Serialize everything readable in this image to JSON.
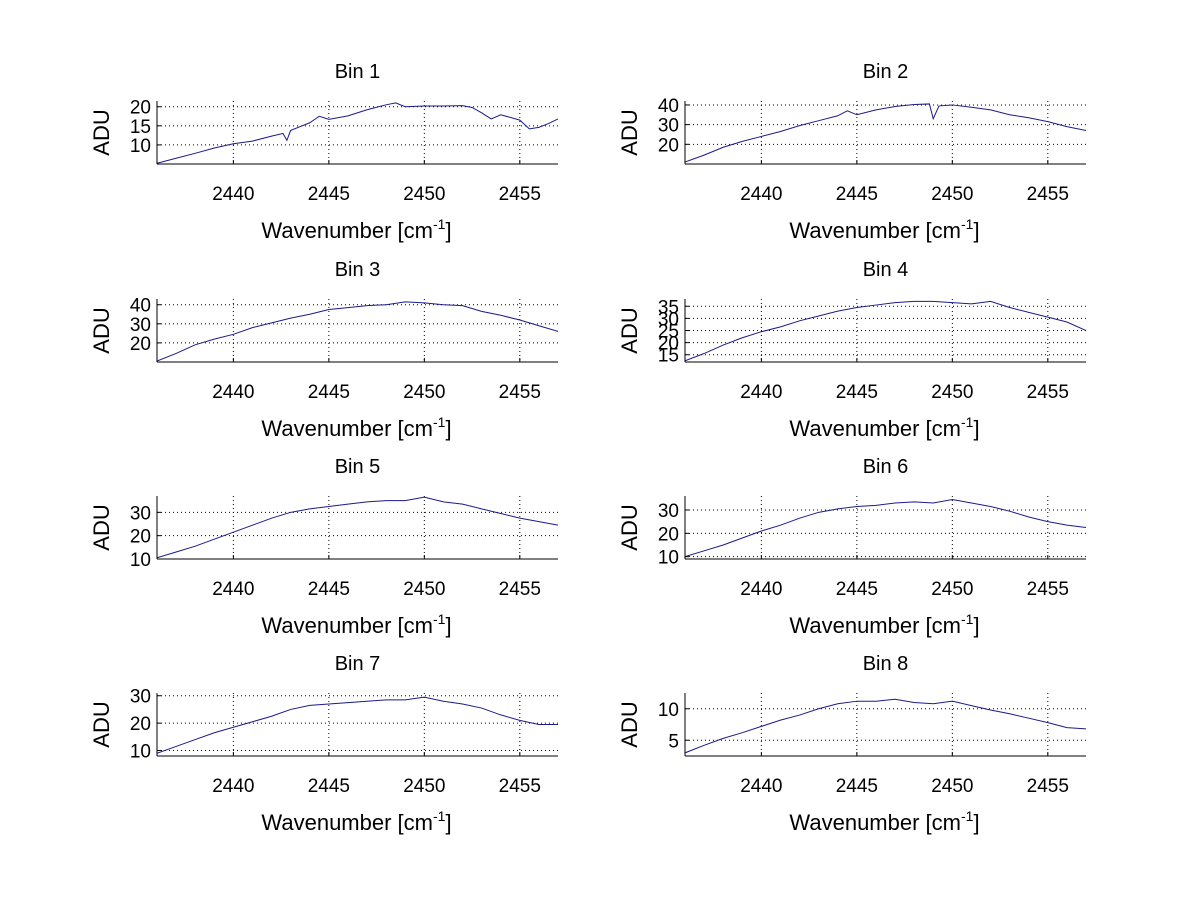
{
  "chart_data": [
    {
      "type": "line",
      "title": "Bin 1",
      "xlabel": "Wavenumber [cm",
      "xlabel_sup": "-1",
      "xlabel_tail": "]",
      "ylabel": "ADU",
      "xlim": [
        2436,
        2457
      ],
      "ylim": [
        5,
        21.5
      ],
      "xticks": [
        2440,
        2445,
        2450,
        2455
      ],
      "yticks": [
        10,
        15,
        20
      ],
      "line_color": "#1a1a8c",
      "grid": true,
      "x": [
        2436,
        2437,
        2438,
        2439,
        2440,
        2441,
        2442,
        2442.6,
        2442.8,
        2443,
        2444,
        2444.5,
        2445,
        2446,
        2447,
        2448,
        2448.5,
        2449,
        2450,
        2451,
        2452,
        2452.5,
        2453,
        2453.5,
        2454,
        2455,
        2455.5,
        2456,
        2456.5,
        2457
      ],
      "y": [
        5.2,
        6.5,
        7.8,
        9.2,
        10.3,
        11,
        12.3,
        13,
        11.2,
        13.8,
        15.8,
        17.5,
        16.7,
        17.6,
        19.2,
        20.5,
        21,
        20,
        20.2,
        20.2,
        20.3,
        19.8,
        18.4,
        16.8,
        17.9,
        16.5,
        14.2,
        14.6,
        15.6,
        16.8
      ]
    },
    {
      "type": "line",
      "title": "Bin 2",
      "xlabel": "Wavenumber [cm",
      "xlabel_sup": "-1",
      "xlabel_tail": "]",
      "ylabel": "ADU",
      "xlim": [
        2436,
        2457
      ],
      "ylim": [
        10,
        42
      ],
      "xticks": [
        2440,
        2445,
        2450,
        2455
      ],
      "yticks": [
        20,
        30,
        40
      ],
      "line_color": "#1a1a8c",
      "grid": true,
      "x": [
        2436,
        2437,
        2438,
        2439,
        2440,
        2441,
        2442,
        2443,
        2444,
        2444.5,
        2445,
        2446,
        2447,
        2448,
        2448.8,
        2449,
        2449.3,
        2450,
        2451,
        2452,
        2453,
        2454,
        2455,
        2456,
        2457
      ],
      "y": [
        11,
        14.5,
        18.5,
        21.5,
        24,
        26.5,
        29.5,
        32,
        34.5,
        37,
        35,
        37.5,
        39.2,
        40.2,
        40.5,
        33,
        39.5,
        40,
        38.8,
        37.5,
        35,
        33.5,
        31.5,
        29,
        27
      ]
    },
    {
      "type": "line",
      "title": "Bin 3",
      "xlabel": "Wavenumber [cm",
      "xlabel_sup": "-1",
      "xlabel_tail": "]",
      "ylabel": "ADU",
      "xlim": [
        2436,
        2457
      ],
      "ylim": [
        10,
        43
      ],
      "xticks": [
        2440,
        2445,
        2450,
        2455
      ],
      "yticks": [
        20,
        30,
        40
      ],
      "line_color": "#1a1a8c",
      "grid": true,
      "x": [
        2436,
        2437,
        2438,
        2439,
        2440,
        2441,
        2442,
        2443,
        2444,
        2445,
        2446,
        2447,
        2448,
        2449,
        2450,
        2451,
        2452,
        2453,
        2454,
        2455,
        2456,
        2457
      ],
      "y": [
        10.5,
        14.5,
        19,
        22,
        24.5,
        28,
        30.5,
        33,
        35,
        37.5,
        38.5,
        39.5,
        40,
        41.5,
        41,
        40,
        39.5,
        36.5,
        34.5,
        32,
        29,
        26
      ]
    },
    {
      "type": "line",
      "title": "Bin 4",
      "xlabel": "Wavenumber [cm",
      "xlabel_sup": "-1",
      "xlabel_tail": "]",
      "ylabel": "ADU",
      "xlim": [
        2436,
        2457
      ],
      "ylim": [
        12,
        38
      ],
      "xticks": [
        2440,
        2445,
        2450,
        2455
      ],
      "yticks": [
        15,
        20,
        25,
        30,
        35
      ],
      "line_color": "#1a1a8c",
      "grid": true,
      "x": [
        2436,
        2437,
        2438,
        2439,
        2440,
        2441,
        2442,
        2443,
        2444,
        2445,
        2446,
        2447,
        2448,
        2449,
        2450,
        2451,
        2452,
        2453,
        2454,
        2455,
        2456,
        2457
      ],
      "y": [
        12.5,
        15.5,
        19,
        22,
        24.5,
        26.5,
        29,
        31,
        33,
        34.5,
        35.5,
        36.5,
        37,
        37,
        36.5,
        36,
        37,
        34.5,
        32.5,
        30.5,
        28.5,
        25
      ]
    },
    {
      "type": "line",
      "title": "Bin 5",
      "xlabel": "Wavenumber [cm",
      "xlabel_sup": "-1",
      "xlabel_tail": "]",
      "ylabel": "ADU",
      "xlim": [
        2436,
        2457
      ],
      "ylim": [
        10,
        37
      ],
      "xticks": [
        2440,
        2445,
        2450,
        2455
      ],
      "yticks": [
        10,
        20,
        30
      ],
      "line_color": "#1a1a8c",
      "grid": true,
      "x": [
        2436,
        2437,
        2438,
        2439,
        2440,
        2441,
        2442,
        2443,
        2444,
        2445,
        2446,
        2447,
        2448,
        2449,
        2450,
        2451,
        2452,
        2453,
        2454,
        2455,
        2456,
        2457
      ],
      "y": [
        10.5,
        13,
        15.5,
        18.5,
        21.5,
        24.5,
        27.5,
        30,
        31.5,
        32.5,
        33.5,
        34.5,
        35,
        35,
        36.5,
        34.5,
        33.5,
        31.5,
        29.5,
        27.5,
        26,
        24.5
      ]
    },
    {
      "type": "line",
      "title": "Bin 6",
      "xlabel": "Wavenumber [cm",
      "xlabel_sup": "-1",
      "xlabel_tail": "]",
      "ylabel": "ADU",
      "xlim": [
        2436,
        2457
      ],
      "ylim": [
        9,
        36
      ],
      "xticks": [
        2440,
        2445,
        2450,
        2455
      ],
      "yticks": [
        10,
        20,
        30
      ],
      "line_color": "#1a1a8c",
      "grid": true,
      "x": [
        2436,
        2437,
        2438,
        2439,
        2440,
        2441,
        2442,
        2443,
        2444,
        2445,
        2446,
        2447,
        2448,
        2449,
        2450,
        2451,
        2452,
        2453,
        2454,
        2455,
        2456,
        2457
      ],
      "y": [
        10,
        12.5,
        15,
        18,
        21,
        23.5,
        26.5,
        29,
        30.5,
        31.5,
        32,
        33,
        33.5,
        33,
        34.5,
        33,
        31.5,
        29.5,
        27,
        25,
        23.5,
        22.5
      ]
    },
    {
      "type": "line",
      "title": "Bin 7",
      "xlabel": "Wavenumber [cm",
      "xlabel_sup": "-1",
      "xlabel_tail": "]",
      "ylabel": "ADU",
      "xlim": [
        2436,
        2457
      ],
      "ylim": [
        8,
        31
      ],
      "xticks": [
        2440,
        2445,
        2450,
        2455
      ],
      "yticks": [
        10,
        20,
        30
      ],
      "line_color": "#1a1a8c",
      "grid": true,
      "x": [
        2436,
        2437,
        2438,
        2439,
        2440,
        2441,
        2442,
        2443,
        2444,
        2445,
        2446,
        2447,
        2448,
        2449,
        2450,
        2451,
        2452,
        2453,
        2454,
        2455,
        2456,
        2457
      ],
      "y": [
        9,
        11.5,
        14,
        16.5,
        18.5,
        20.5,
        22.5,
        25,
        26.5,
        27,
        27.5,
        28,
        28.5,
        28.5,
        29.5,
        28,
        27,
        25.5,
        23,
        21,
        19.5,
        19.5
      ]
    },
    {
      "type": "line",
      "title": "Bin 8",
      "xlabel": "Wavenumber [cm",
      "xlabel_sup": "-1",
      "xlabel_tail": "]",
      "ylabel": "ADU",
      "xlim": [
        2436,
        2457
      ],
      "ylim": [
        2.5,
        12.5
      ],
      "xticks": [
        2440,
        2445,
        2450,
        2455
      ],
      "yticks": [
        5,
        10
      ],
      "line_color": "#1a1a8c",
      "grid": true,
      "x": [
        2436,
        2437,
        2438,
        2439,
        2440,
        2441,
        2442,
        2443,
        2444,
        2445,
        2446,
        2447,
        2448,
        2449,
        2450,
        2451,
        2452,
        2453,
        2454,
        2455,
        2456,
        2457
      ],
      "y": [
        3,
        4.2,
        5.3,
        6.2,
        7.2,
        8.2,
        9,
        10,
        10.8,
        11.2,
        11.2,
        11.5,
        11,
        10.8,
        11.2,
        10.5,
        9.8,
        9.2,
        8.5,
        7.8,
        7,
        6.8
      ]
    }
  ]
}
